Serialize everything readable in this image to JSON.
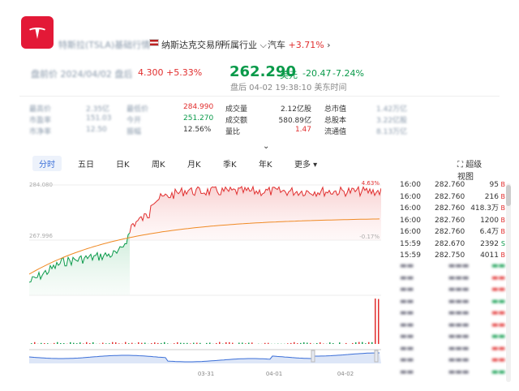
{
  "header": {
    "blurred_name": "特斯拉(TSLA)基础行情",
    "exchange_flag": "us-flag-icon",
    "exchange": "纳斯达克交易所",
    "industry_label": "所属行业",
    "industry": "汽车",
    "industry_change": "+3.71%"
  },
  "pre": {
    "blurred": "盘前价 2024/04/02 盘后",
    "price": "4.300",
    "change": "+5.33%"
  },
  "quote": {
    "price": "262.290",
    "currency": "美元",
    "change": "-20.47",
    "change_pct": "-7.24%",
    "time": "盘后 04-02 19:38:10 美东时间"
  },
  "stats": [
    {
      "l1": "最高价",
      "v1": "2.35亿",
      "l2": "最低价",
      "v2": "284.990",
      "l3": "成交量",
      "v3": "2.12亿股",
      "l4": "总市值",
      "v4": "1.42万亿"
    },
    {
      "l1": "市盈率",
      "v1": "151.03",
      "l2": "今开",
      "v2": "251.270",
      "l3": "成交额",
      "v3": "580.89亿",
      "l4": "总股本",
      "v4": "3.22亿股"
    },
    {
      "l1": "市净率",
      "v1": "12.50",
      "l2": "振幅",
      "v2": "12.56%",
      "l3": "量比",
      "v3": "1.47",
      "l4": "流通值",
      "v4": "8.13万亿"
    }
  ],
  "tabs": [
    "分时",
    "五日",
    "日K",
    "周K",
    "月K",
    "季K",
    "年K",
    "更多"
  ],
  "super_view": "超级视图",
  "chart_data": {
    "type": "line",
    "y_top_label": "284.080",
    "y_mid_label": "267.996",
    "pct_top": "4.63%",
    "pct_mid": "-0.17%",
    "x_labels": [
      "03-31",
      "04-01",
      "04-02"
    ]
  },
  "trades": [
    {
      "t": "16:00",
      "p": "282.760",
      "v": "95",
      "s": "B"
    },
    {
      "t": "16:00",
      "p": "282.760",
      "v": "216",
      "s": "B"
    },
    {
      "t": "16:00",
      "p": "282.760",
      "v": "418.3万",
      "s": "B"
    },
    {
      "t": "16:00",
      "p": "282.760",
      "v": "1200",
      "s": "B"
    },
    {
      "t": "16:00",
      "p": "282.760",
      "v": "6.4万",
      "s": "B"
    },
    {
      "t": "15:59",
      "p": "282.670",
      "v": "2392",
      "s": "S"
    },
    {
      "t": "15:59",
      "p": "282.750",
      "v": "4011",
      "s": "B"
    }
  ],
  "colors": {
    "up": "#e12e2e",
    "down": "#0a9a4a",
    "accent": "#3b6fd8",
    "avg": "#f08a24"
  }
}
